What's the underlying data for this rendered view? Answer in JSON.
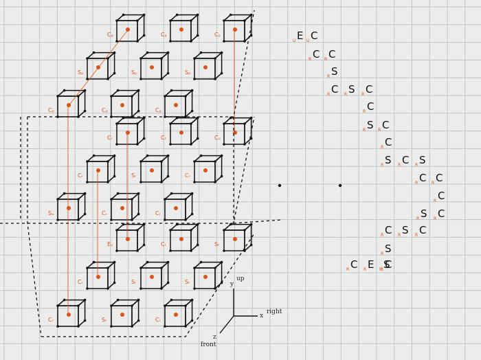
{
  "colors": {
    "paper": "#ecedea",
    "grid": "#aab8c4",
    "ink": "#111111",
    "accent": "#d9541c"
  },
  "cube_labels": [
    "Cₚ",
    "Cₚ",
    "Cₚ",
    "Sₚ",
    "Sₚ",
    "Sₚ",
    "Cₚ",
    "Cₚ",
    "Cₚ",
    "Cᵣ",
    "Cᵣ",
    "Cᵤ",
    "Cᵣ",
    "Sᵣ",
    "Cᵣ",
    "Sᵤ",
    "Cᵣ",
    "Cᵣ",
    "Eᵤ",
    "Cᵣ",
    "Sᵣ",
    "Cᵣ",
    "Sᵣ",
    "Sᵣ",
    "Cᵣ",
    "Sᵣ",
    "Cᵣ"
  ],
  "cube_numbers": [
    "",
    "",
    "",
    "",
    "",
    "",
    "",
    "",
    "",
    "",
    "",
    "",
    "",
    "",
    "",
    "",
    "",
    "",
    "",
    "",
    "",
    "",
    "",
    "",
    "",
    "",
    ""
  ],
  "sequence": [
    {
      "big": "E",
      "small": "U"
    },
    {
      "big": "C",
      "small": "U"
    },
    {
      "big": "C",
      "small": "R"
    },
    {
      "big": "C",
      "small": "R"
    },
    {
      "big": "S",
      "small": "R"
    },
    {
      "big": "C",
      "small": "R"
    },
    {
      "big": "S",
      "small": "R"
    },
    {
      "big": "C",
      "small": "R"
    },
    {
      "big": "C",
      "small": "R"
    },
    {
      "big": "S",
      "small": "R"
    },
    {
      "big": "C",
      "small": "R"
    },
    {
      "big": "C",
      "small": "R"
    },
    {
      "big": "S",
      "small": "R"
    },
    {
      "big": "C",
      "small": "R"
    },
    {
      "big": "S",
      "small": "R"
    },
    {
      "big": "C",
      "small": "R"
    },
    {
      "big": "C",
      "small": "R"
    },
    {
      "big": "C",
      "small": "R"
    },
    {
      "big": "S",
      "small": "R"
    },
    {
      "big": "C",
      "small": "R"
    },
    {
      "big": "C",
      "small": "R"
    },
    {
      "big": "S",
      "small": "R"
    },
    {
      "big": "C",
      "small": "R"
    },
    {
      "big": "S",
      "small": "R"
    },
    {
      "big": "C",
      "small": "R"
    },
    {
      "big": "E",
      "small": "R"
    },
    {
      "big": "S",
      "small": "R"
    },
    {
      "big": "C",
      "small": "R"
    }
  ],
  "axes": {
    "y": "y",
    "up": "up",
    "x": "x",
    "right": "right",
    "z": "z",
    "front": "front"
  }
}
